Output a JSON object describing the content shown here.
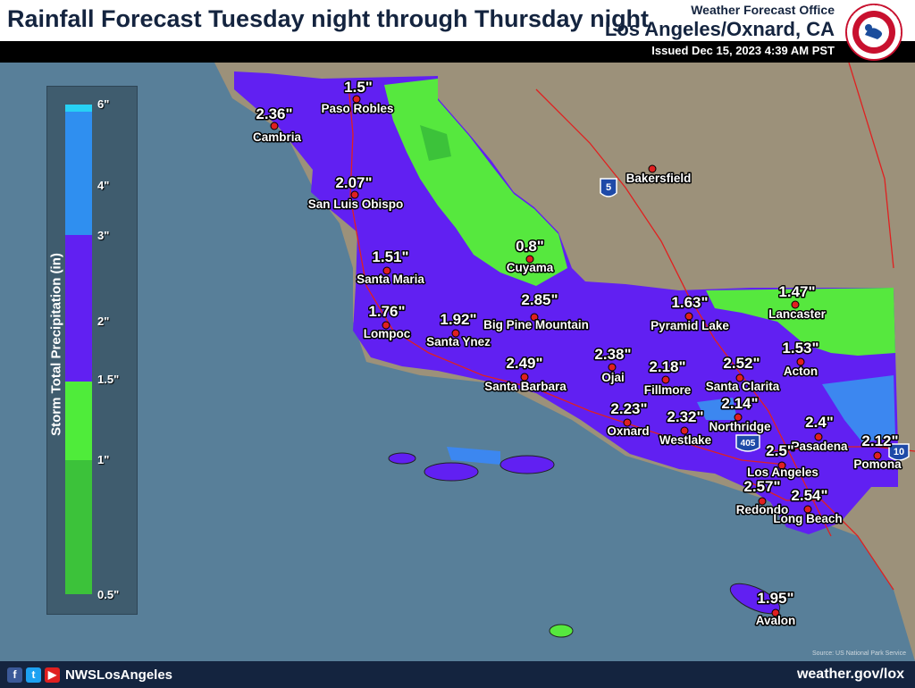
{
  "header": {
    "title": "Rainfall Forecast Tuesday night through Thursday night",
    "office_label": "Weather Forecast Office",
    "office_name": "Los Angeles/Oxnard, CA",
    "issued": "Issued Dec 15, 2023 4:39 AM PST",
    "logo_text": "NATIONAL WEATHER SERVICE"
  },
  "legend": {
    "title": "Storm Total Precipitation (in)",
    "ticks": [
      "6\"",
      "4\"",
      "3\"",
      "2\"",
      "1.5\"",
      "1\"",
      "0.5\""
    ],
    "colors": [
      "#27d1f5",
      "#2f8ff0",
      "#6120f2",
      "#4fec3a",
      "#3cc23a"
    ]
  },
  "forecasts": [
    {
      "amount": "1.5\"",
      "city": "Paso Robles"
    },
    {
      "amount": "2.36\"",
      "city": "Cambria"
    },
    {
      "amount": "2.07\"",
      "city": "San Luis Obispo"
    },
    {
      "amount": "0.8\"",
      "city": "Cuyama"
    },
    {
      "amount": "1.51\"",
      "city": "Santa Maria"
    },
    {
      "amount": "1.76\"",
      "city": "Lompoc"
    },
    {
      "amount": "1.92\"",
      "city": "Santa Ynez"
    },
    {
      "amount": "2.85\"",
      "city": "Big Pine Mountain"
    },
    {
      "amount": "2.49\"",
      "city": "Santa Barbara"
    },
    {
      "amount": "2.38\"",
      "city": "Ojai"
    },
    {
      "amount": "2.18\"",
      "city": "Fillmore"
    },
    {
      "amount": "1.63\"",
      "city": "Pyramid Lake"
    },
    {
      "amount": "2.52\"",
      "city": "Santa Clarita"
    },
    {
      "amount": "1.47\"",
      "city": "Lancaster"
    },
    {
      "amount": "1.53\"",
      "city": "Acton"
    },
    {
      "amount": "2.23\"",
      "city": "Oxnard"
    },
    {
      "amount": "2.32\"",
      "city": "Westlake"
    },
    {
      "amount": "2.14\"",
      "city": "Northridge"
    },
    {
      "amount": "2.4\"",
      "city": "Pasadena"
    },
    {
      "amount": "2.5\"",
      "city": "Los Angeles"
    },
    {
      "amount": "2.12\"",
      "city": "Pomona"
    },
    {
      "amount": "2.57\"",
      "city": "Redondo"
    },
    {
      "amount": "2.54\"",
      "city": "Long Beach"
    },
    {
      "amount": "1.95\"",
      "city": "Avalon"
    }
  ],
  "other_places": [
    {
      "city": "Bakersfield"
    }
  ],
  "highway_shields": [
    "5",
    "405",
    "10"
  ],
  "colors": {
    "land": "#9a8f76",
    "ocean": "#587f99",
    "green": "#56e83e",
    "purple": "#6120f2",
    "blue": "#3c87f0",
    "roads": "#e02020"
  },
  "footer": {
    "social_handle": "NWSLosAngeles",
    "website": "weather.gov/lox"
  },
  "source_note": "Source: US National Park Service"
}
